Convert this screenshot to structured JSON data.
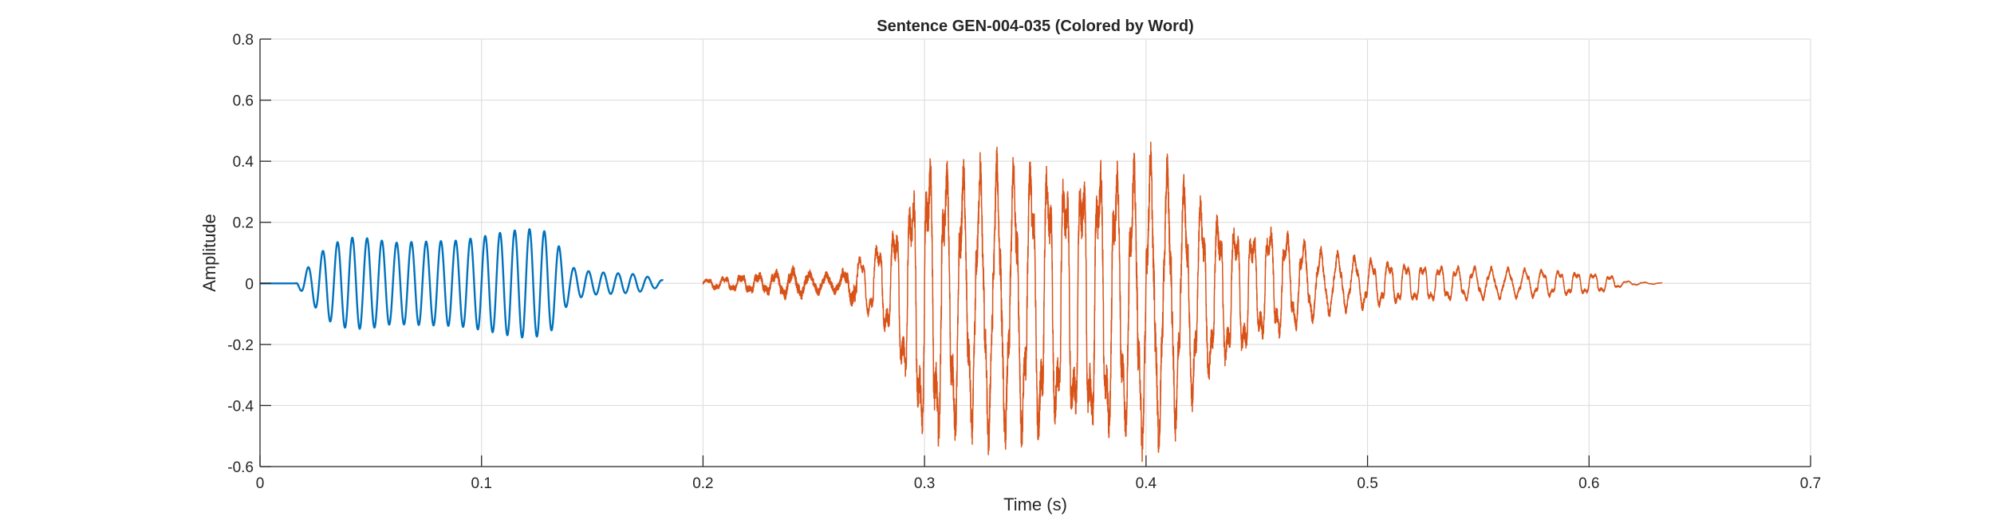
{
  "chart_data": {
    "type": "line",
    "title": "Sentence GEN-004-035 (Colored by Word)",
    "xlabel": "Time (s)",
    "ylabel": "Amplitude",
    "xlim": [
      0,
      0.7
    ],
    "ylim": [
      -0.6,
      0.8
    ],
    "x_ticks": [
      0,
      0.1,
      0.2,
      0.3,
      0.4,
      0.5,
      0.6,
      0.7
    ],
    "x_tick_labels": [
      "0",
      "0.1",
      "0.2",
      "0.3",
      "0.4",
      "0.5",
      "0.6",
      "0.7"
    ],
    "y_ticks": [
      -0.6,
      -0.4,
      -0.2,
      0,
      0.2,
      0.4,
      0.6,
      0.8
    ],
    "y_tick_labels": [
      "-0.6",
      "-0.4",
      "-0.2",
      "0",
      "0.2",
      "0.4",
      "0.6",
      "0.8"
    ],
    "grid": true,
    "series": [
      {
        "color": "#0072BD",
        "time_range": [
          0,
          0.182
        ],
        "oscillation_hz": 150,
        "envelope": [
          [
            0,
            0.0
          ],
          [
            0.016,
            0.0
          ],
          [
            0.02,
            0.04
          ],
          [
            0.025,
            0.08
          ],
          [
            0.03,
            0.12
          ],
          [
            0.04,
            0.15
          ],
          [
            0.05,
            0.15
          ],
          [
            0.06,
            0.14
          ],
          [
            0.07,
            0.15
          ],
          [
            0.08,
            0.16
          ],
          [
            0.09,
            0.17
          ],
          [
            0.1,
            0.19
          ],
          [
            0.11,
            0.21
          ],
          [
            0.12,
            0.22
          ],
          [
            0.13,
            0.2
          ],
          [
            0.135,
            0.14
          ],
          [
            0.14,
            0.06
          ],
          [
            0.15,
            0.04
          ],
          [
            0.16,
            0.035
          ],
          [
            0.17,
            0.03
          ],
          [
            0.182,
            0.01
          ]
        ]
      },
      {
        "color": "#D95319",
        "time_range": [
          0.2,
          0.633
        ],
        "oscillation_hz": 130,
        "envelope": [
          [
            0.2,
            0.01
          ],
          [
            0.205,
            0.02
          ],
          [
            0.21,
            0.02
          ],
          [
            0.22,
            0.03
          ],
          [
            0.23,
            0.035
          ],
          [
            0.24,
            0.05
          ],
          [
            0.25,
            0.035
          ],
          [
            0.26,
            0.03
          ],
          [
            0.265,
            0.05
          ],
          [
            0.27,
            0.09
          ],
          [
            0.28,
            0.15
          ],
          [
            0.29,
            0.3
          ],
          [
            0.3,
            0.55
          ],
          [
            0.31,
            0.5
          ],
          [
            0.32,
            0.48
          ],
          [
            0.33,
            0.52
          ],
          [
            0.34,
            0.5
          ],
          [
            0.35,
            0.52
          ],
          [
            0.36,
            0.46
          ],
          [
            0.37,
            0.48
          ],
          [
            0.38,
            0.52
          ],
          [
            0.39,
            0.48
          ],
          [
            0.4,
            0.55
          ],
          [
            0.41,
            0.5
          ],
          [
            0.42,
            0.4
          ],
          [
            0.43,
            0.3
          ],
          [
            0.44,
            0.25
          ],
          [
            0.45,
            0.22
          ],
          [
            0.46,
            0.2
          ],
          [
            0.47,
            0.16
          ],
          [
            0.48,
            0.12
          ],
          [
            0.5,
            0.09
          ],
          [
            0.52,
            0.07
          ],
          [
            0.55,
            0.06
          ],
          [
            0.58,
            0.05
          ],
          [
            0.6,
            0.04
          ],
          [
            0.61,
            0.03
          ],
          [
            0.615,
            0.01
          ],
          [
            0.625,
            0.004
          ],
          [
            0.633,
            0.002
          ]
        ]
      }
    ]
  }
}
